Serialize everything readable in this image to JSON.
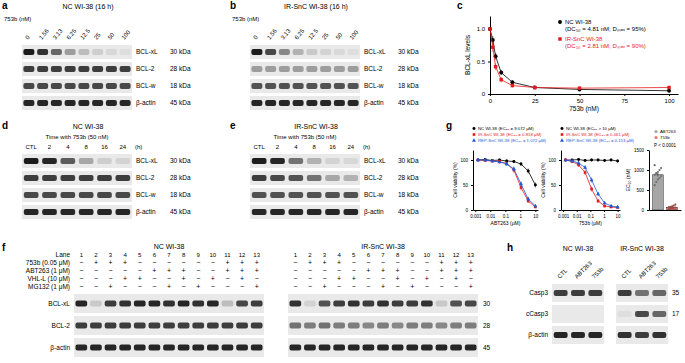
{
  "chart_data": [
    {
      "panel": "c",
      "type": "line",
      "x_label": "753b (nM)",
      "y_label": "BCL-xL levels",
      "xlim": [
        0,
        105
      ],
      "xticks": [
        0,
        25,
        50,
        75,
        100
      ],
      "ylim": [
        0,
        1.2
      ],
      "yticks": [
        0,
        0.5,
        {
          "value": 1,
          "label": "1.0"
        }
      ],
      "legend": "upper right",
      "x": [
        0,
        1.56,
        3.13,
        6.25,
        12.5,
        25,
        50,
        100
      ],
      "series": [
        {
          "name": "NC WI-38",
          "legend_detail": "(DC₅₀ = 4.81 nM; Dₘₐₓ = 95%)",
          "color": "#000000",
          "marker": "circle",
          "values": [
            1,
            0.83,
            0.58,
            0.33,
            0.18,
            0.1,
            0.07,
            0.05
          ],
          "errors": [
            0,
            0.06,
            0.05,
            0.04,
            0.03,
            0.02,
            0.02,
            0.01
          ]
        },
        {
          "name": "IR-SnC WI-38",
          "legend_detail": "(DC₅₀ = 2.81 nM; Dₘₐₓ = 90%)",
          "color": "#e41a1c",
          "marker": "square",
          "values": [
            1,
            0.72,
            0.42,
            0.22,
            0.13,
            0.1,
            0.09,
            0.1
          ],
          "errors": [
            0,
            0.07,
            0.05,
            0.04,
            0.03,
            0.02,
            0.02,
            0.02
          ]
        }
      ]
    },
    {
      "panel": "g",
      "type": "line",
      "x_label": "ABT263 (μM)",
      "y_label": "Cell viability (%)",
      "log": "x",
      "xlim": [
        0.0007,
        15
      ],
      "xticks": [
        0.001,
        0.01,
        0.1,
        1,
        10
      ],
      "ylim": [
        0,
        120
      ],
      "yticks": [
        0,
        50,
        100
      ],
      "x": [
        0.0015,
        0.0046,
        0.0137,
        0.041,
        0.123,
        0.37,
        1.11,
        3.33,
        10
      ],
      "series": [
        {
          "name": "NC WI-38",
          "legend_detail": "(EC₅₀ = 9.072 μM)",
          "color": "#000000",
          "marker": "circle",
          "values": [
            100,
            101,
            99,
            100,
            98,
            97,
            92,
            78,
            50
          ],
          "errors": [
            2,
            2,
            3,
            3,
            3,
            3,
            4,
            5,
            5
          ]
        },
        {
          "name": "IR-SnC WI-38",
          "legend_detail": "(EC₅₀ = 0.818 μM)",
          "color": "#e41a1c",
          "marker": "square",
          "values": [
            100,
            99,
            98,
            97,
            93,
            80,
            45,
            18,
            6
          ],
          "errors": [
            3,
            3,
            3,
            4,
            4,
            5,
            6,
            4,
            2
          ]
        },
        {
          "name": "REP-SnC WI-38",
          "legend_detail": "(EC₅₀ = 1.072 μM)",
          "color": "#1f5bd6",
          "marker": "triangle",
          "values": [
            100,
            100,
            98,
            96,
            92,
            82,
            52,
            22,
            8
          ],
          "errors": [
            3,
            3,
            3,
            3,
            4,
            5,
            5,
            4,
            2
          ]
        }
      ]
    },
    {
      "type": "line",
      "x_label": "753b (μM)",
      "y_label": "Cell viability (%)",
      "log": "x",
      "xlim": [
        0.0007,
        15
      ],
      "xticks": [
        0.001,
        0.01,
        0.1,
        1,
        10
      ],
      "ylim": [
        0,
        120
      ],
      "yticks": [
        0,
        50,
        100
      ],
      "x": [
        0.0015,
        0.0046,
        0.0137,
        0.041,
        0.123,
        0.37,
        1.11,
        3.33,
        10
      ],
      "series": [
        {
          "name": "NC WI-38",
          "legend_detail": "(EC₅₀ > 10 μM)",
          "color": "#000000",
          "marker": "circle",
          "values": [
            100,
            100,
            101,
            99,
            100,
            100,
            99,
            100,
            98
          ],
          "errors": [
            2,
            2,
            2,
            3,
            3,
            3,
            3,
            3,
            3
          ]
        },
        {
          "name": "IR-SnC WI-38",
          "legend_detail": "(EC₅₀ = 0.061 μM)",
          "color": "#e41a1c",
          "marker": "square",
          "values": [
            100,
            97,
            90,
            75,
            42,
            18,
            8,
            6,
            5
          ],
          "errors": [
            3,
            3,
            4,
            5,
            5,
            4,
            3,
            2,
            2
          ]
        },
        {
          "name": "REP-SnC WI-38",
          "legend_detail": "(EC₅₀ = 0.153 μM)",
          "color": "#1f5bd6",
          "marker": "triangle",
          "values": [
            100,
            98,
            94,
            85,
            60,
            32,
            14,
            8,
            6
          ],
          "errors": [
            3,
            3,
            4,
            4,
            5,
            4,
            3,
            2,
            2
          ]
        }
      ]
    },
    {
      "type": "bar",
      "y_label": "EC₅₀ (nM)",
      "tick_labels": "y",
      "categories": [
        "ABT263",
        "753b"
      ],
      "values": [
        880,
        70
      ],
      "errors": [
        40,
        10
      ],
      "colors": [
        "#a6a6a6",
        "#e8766e"
      ],
      "points": [
        [
          620,
          700,
          760,
          800,
          850,
          880,
          910,
          950,
          1000,
          1050,
          1120,
          920
        ],
        [
          20,
          35,
          45,
          55,
          60,
          70,
          80,
          90,
          110,
          135
        ]
      ],
      "ylim": [
        0,
        1500
      ],
      "yticks": [
        0,
        500,
        1000,
        1500
      ],
      "annotation": "P < 0.0001"
    }
  ],
  "blots": [
    {
      "panel": "a",
      "title": "NC WI-38 (16 h)",
      "header": "753b (nM)",
      "lanes": [
        "0",
        "1.56",
        "3.13",
        "6.25",
        "12.5",
        "25",
        "50",
        "100"
      ],
      "row_labels": [
        "BCL-xL",
        "BCL-2",
        "BCL-w",
        "β-actin"
      ],
      "mw": [
        "30 kDa",
        "28 kDa",
        "18 kDa",
        "45 kDa"
      ],
      "values": [
        [
          0.95,
          0.85,
          0.6,
          0.35,
          0.2,
          0.12,
          0.08,
          0.05
        ],
        [
          0.8,
          0.8,
          0.8,
          0.8,
          0.8,
          0.8,
          0.8,
          0.8
        ],
        [
          0.75,
          0.75,
          0.75,
          0.75,
          0.75,
          0.75,
          0.75,
          0.75
        ],
        [
          0.9,
          0.9,
          0.9,
          0.9,
          0.9,
          0.9,
          0.9,
          0.9
        ]
      ]
    },
    {
      "panel": "b",
      "title": "IR-SnC WI-38 (16 h)",
      "header": "753b (nM)",
      "lanes": [
        "0",
        "1.56",
        "3.13",
        "6.25",
        "12.5",
        "25",
        "50",
        "100"
      ],
      "row_labels": [
        "BCL-xL",
        "BCL-2",
        "BCL-w",
        "β-actin"
      ],
      "mw": [
        "30 kDa",
        "28 kDa",
        "18 kDa",
        "45 kDa"
      ],
      "values": [
        [
          0.95,
          0.75,
          0.45,
          0.25,
          0.15,
          0.1,
          0.07,
          0.05
        ],
        [
          0.35,
          0.35,
          0.35,
          0.35,
          0.35,
          0.35,
          0.35,
          0.35
        ],
        [
          0.7,
          0.7,
          0.7,
          0.7,
          0.7,
          0.7,
          0.7,
          0.7
        ],
        [
          0.9,
          0.9,
          0.9,
          0.9,
          0.9,
          0.9,
          0.9,
          0.9
        ]
      ]
    },
    {
      "panel": "d",
      "title": "NC WI-38",
      "header": "Time with 753b (50 nM)",
      "lanes": [
        "CTL",
        "2",
        "4",
        "8",
        "16",
        "24"
      ],
      "lane_unit": "(h)",
      "row_labels": [
        "BCL-xL",
        "BCL-2",
        "BCL-w",
        "β-actin"
      ],
      "mw": [
        "30 kDa",
        "28 kDa",
        "18 kDa",
        "45 kDa"
      ],
      "values": [
        [
          0.95,
          0.9,
          0.65,
          0.3,
          0.12,
          0.1
        ],
        [
          0.8,
          0.8,
          0.8,
          0.8,
          0.8,
          0.8
        ],
        [
          0.75,
          0.75,
          0.75,
          0.75,
          0.75,
          0.75
        ],
        [
          0.9,
          0.9,
          0.9,
          0.9,
          0.9,
          0.9
        ]
      ]
    },
    {
      "panel": "e",
      "title": "IR-SnC WI-38",
      "header": "Time with 753b (50 nM)",
      "lanes": [
        "CTL",
        "2",
        "4",
        "8",
        "16",
        "24"
      ],
      "lane_unit": "(h)",
      "row_labels": [
        "BCL-xL",
        "BCL-2",
        "BCL-w",
        "β-actin"
      ],
      "mw": [
        "30 kDa",
        "28 kDa",
        "18 kDa",
        "45 kDa"
      ],
      "values": [
        [
          0.95,
          0.9,
          0.55,
          0.25,
          0.1,
          0.08
        ],
        [
          0.8,
          0.75,
          0.7,
          0.55,
          0.3,
          0.25
        ],
        [
          0.7,
          0.7,
          0.7,
          0.7,
          0.7,
          0.7
        ],
        [
          0.9,
          0.9,
          0.9,
          0.9,
          0.9,
          0.9
        ]
      ]
    },
    {
      "panel": "f",
      "lane_header": "Lane",
      "lanes": [
        1,
        2,
        3,
        4,
        5,
        6,
        7,
        8,
        9,
        10,
        11,
        12,
        13
      ],
      "treatments": [
        {
          "label": "753b (0.05 μM)",
          "values": [
            "−",
            "+",
            "+",
            "+",
            "−",
            "−",
            "−",
            "−",
            "−",
            "−",
            "+",
            "+",
            "+"
          ]
        },
        {
          "label": "ABT263 (1 μM)",
          "values": [
            "−",
            "−",
            "−",
            "−",
            "−",
            "+",
            "+",
            "+",
            "−",
            "−",
            "+",
            "+",
            "+"
          ]
        },
        {
          "label": "VHL-L (10 μM)",
          "values": [
            "−",
            "−",
            "−",
            "+",
            "+",
            "−",
            "−",
            "+",
            "−",
            "+",
            "−",
            "+",
            "−"
          ]
        },
        {
          "label": "MG132 (1 μM)",
          "values": [
            "−",
            "−",
            "+",
            "−",
            "−",
            "−",
            "+",
            "−",
            "+",
            "−",
            "−",
            "−",
            "+"
          ]
        }
      ],
      "row_labels": [
        "BCL-xL",
        "BCL-2",
        "β-actin"
      ],
      "mw": [
        "30",
        "28",
        "45"
      ],
      "groups": [
        {
          "title": "NC WI-38",
          "values": [
            [
              0.9,
              0.15,
              0.8,
              0.85,
              0.9,
              0.9,
              0.85,
              0.9,
              0.85,
              0.9,
              0.2,
              0.75,
              0.8
            ],
            [
              0.8,
              0.8,
              0.8,
              0.8,
              0.8,
              0.8,
              0.8,
              0.8,
              0.8,
              0.8,
              0.8,
              0.8,
              0.8
            ],
            [
              0.9,
              0.9,
              0.9,
              0.9,
              0.9,
              0.9,
              0.9,
              0.9,
              0.9,
              0.9,
              0.9,
              0.9,
              0.9
            ]
          ]
        },
        {
          "title": "IR-SnC WI-38",
          "values": [
            [
              0.85,
              0.1,
              0.7,
              0.8,
              0.85,
              0.8,
              0.85,
              0.8,
              0.8,
              0.85,
              0.15,
              0.7,
              0.75
            ],
            [
              0.55,
              0.5,
              0.55,
              0.5,
              0.5,
              0.45,
              0.5,
              0.45,
              0.5,
              0.5,
              0.45,
              0.5,
              0.5
            ],
            [
              0.9,
              0.9,
              0.9,
              0.9,
              0.9,
              0.9,
              0.9,
              0.9,
              0.9,
              0.9,
              0.9,
              0.9,
              0.9
            ]
          ]
        }
      ]
    },
    {
      "panel": "h",
      "lanes": [
        "CTL",
        "ABT263",
        "753b"
      ],
      "row_labels": [
        "Casp3",
        "cCasp3",
        "β-actin"
      ],
      "mw": [
        "35",
        "17"
      ],
      "groups": [
        {
          "title": "NC WI-38",
          "values": [
            [
              0.8,
              0.8,
              0.8
            ],
            [
              0,
              0,
              0
            ],
            [
              0.9,
              0.9,
              0.9
            ]
          ]
        },
        {
          "title": "IR-SnC WI-38",
          "values": [
            [
              0.8,
              0.55,
              0.6
            ],
            [
              0.05,
              0.75,
              0.6
            ],
            [
              0.85,
              0.8,
              0.85
            ]
          ]
        }
      ]
    }
  ]
}
